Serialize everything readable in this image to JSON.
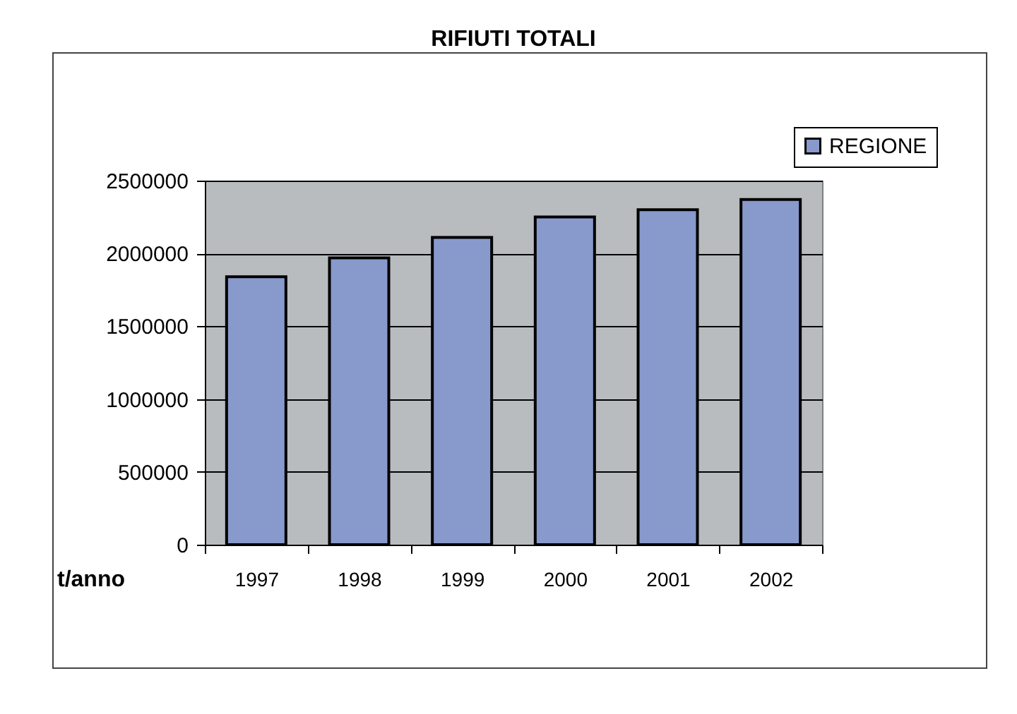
{
  "chart_data": {
    "type": "bar",
    "title": "RIFIUTI TOTALI",
    "ylabel": "t/anno",
    "categories": [
      "1997",
      "1998",
      "1999",
      "2000",
      "2001",
      "2002"
    ],
    "series": [
      {
        "name": "REGIONE",
        "color": "#8899cc",
        "values": [
          1840000,
          1970000,
          2110000,
          2250000,
          2300000,
          2370000
        ]
      }
    ],
    "ylim": [
      0,
      2500000
    ],
    "yticks": [
      0,
      500000,
      1000000,
      1500000,
      2000000,
      2500000
    ],
    "grid": "y",
    "legend": "top right"
  }
}
